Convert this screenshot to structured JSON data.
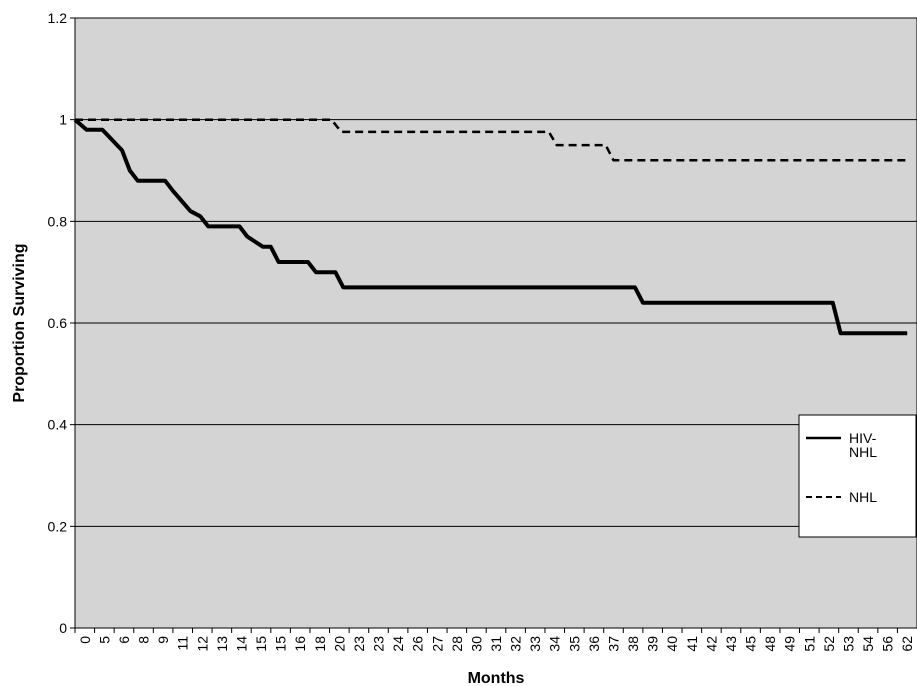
{
  "chart_data": {
    "type": "line",
    "title": "",
    "xlabel": "Months",
    "ylabel": "Proportion Surviving",
    "ylim": [
      0,
      1.2
    ],
    "y_ticks": [
      "0",
      "0.2",
      "0.4",
      "0.6",
      "0.8",
      "1",
      "1.2"
    ],
    "grid": "horizontal",
    "plot_background": "#d4d4d4",
    "legend_position": "right",
    "x_tick_labels": [
      "0",
      "5",
      "6",
      "8",
      "9",
      "11",
      "12",
      "13",
      "14",
      "15",
      "15",
      "16",
      "18",
      "20",
      "23",
      "23",
      "24",
      "26",
      "27",
      "28",
      "30",
      "31",
      "32",
      "33",
      "34",
      "35",
      "36",
      "37",
      "38",
      "39",
      "40",
      "41",
      "42",
      "43",
      "45",
      "48",
      "49",
      "51",
      "52",
      "53",
      "54",
      "56",
      "62"
    ],
    "series": [
      {
        "name": "HIV-NHL",
        "style": "solid",
        "color": "#000000",
        "x": [
          0,
          0.6,
          1.4,
          1.9,
          2.4,
          2.8,
          3.2,
          4.6,
          5.0,
          5.9,
          6.4,
          6.8,
          8.4,
          8.8,
          9.6,
          10.0,
          10.4,
          11.9,
          12.3,
          13.3,
          13.7,
          15.3,
          15.7,
          16.9,
          17.3,
          28.6,
          29.0,
          38.7,
          39.1,
          42.5
        ],
        "values": [
          1,
          0.98,
          0.98,
          0.96,
          0.94,
          0.9,
          0.88,
          0.88,
          0.86,
          0.82,
          0.81,
          0.79,
          0.79,
          0.77,
          0.75,
          0.75,
          0.72,
          0.72,
          0.7,
          0.7,
          0.67,
          0.67,
          0.67,
          0.67,
          0.67,
          0.67,
          0.64,
          0.64,
          0.58,
          0.58
        ]
      },
      {
        "name": "NHL",
        "style": "dashed",
        "color": "#000000",
        "x": [
          0,
          0.5,
          13.1,
          13.6,
          24.2,
          24.6,
          27.1,
          27.5,
          42.5
        ],
        "values": [
          1,
          1,
          1,
          0.976,
          0.976,
          0.95,
          0.95,
          0.92,
          0.92
        ]
      }
    ]
  }
}
